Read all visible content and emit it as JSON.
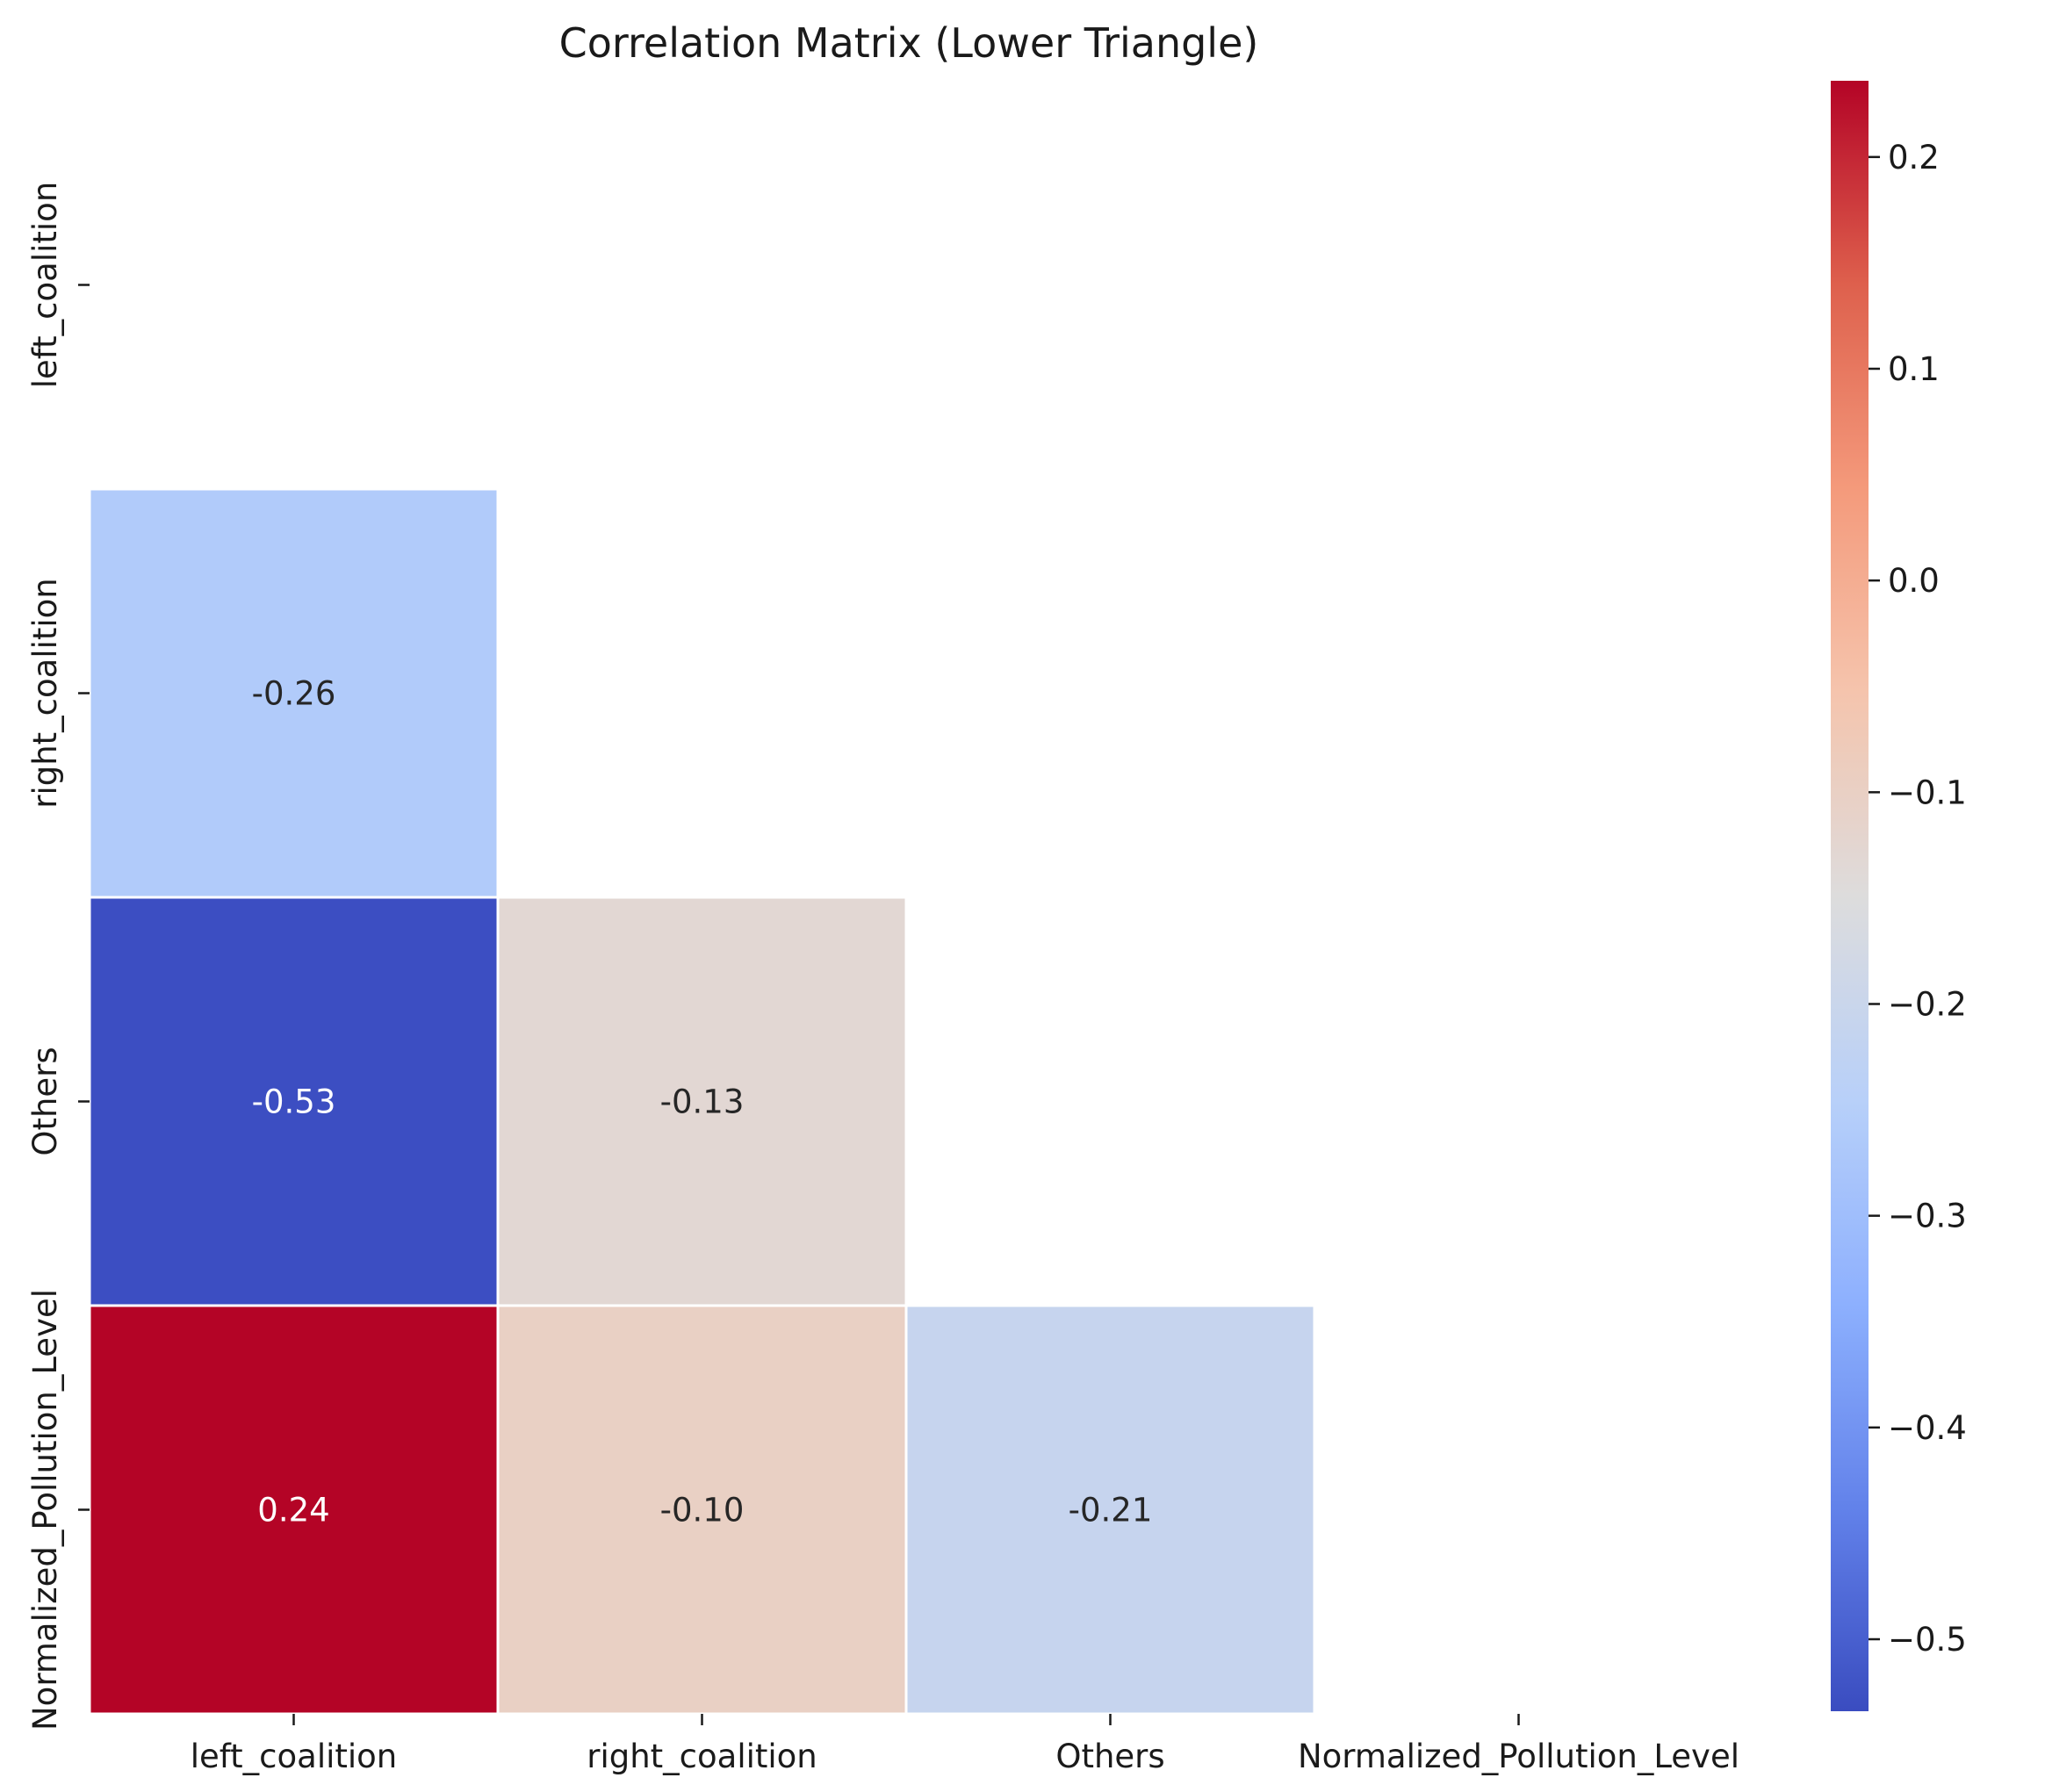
{
  "chart_data": {
    "type": "heatmap",
    "title": "Correlation Matrix (Lower Triangle)",
    "xlabel": "",
    "ylabel": "",
    "row_labels": [
      "left_coalition",
      "right_coalition",
      "Others",
      "Normalized_Pollution_Level"
    ],
    "col_labels": [
      "left_coalition",
      "right_coalition",
      "Others",
      "Normalized_Pollution_Level"
    ],
    "mask": "upper triangle including diagonal",
    "cells": [
      {
        "row": 1,
        "col": 0,
        "value": -0.26,
        "label": "-0.26"
      },
      {
        "row": 2,
        "col": 0,
        "value": -0.53,
        "label": "-0.53"
      },
      {
        "row": 2,
        "col": 1,
        "value": -0.13,
        "label": "-0.13"
      },
      {
        "row": 3,
        "col": 0,
        "value": 0.24,
        "label": "0.24"
      },
      {
        "row": 3,
        "col": 1,
        "value": -0.1,
        "label": "-0.10"
      },
      {
        "row": 3,
        "col": 2,
        "value": -0.21,
        "label": "-0.21"
      }
    ],
    "colormap": "coolwarm",
    "colorbar": {
      "vmin": -0.534,
      "vmax": 0.236,
      "ticks": [
        0.2,
        0.1,
        0.0,
        -0.1,
        -0.2,
        -0.3,
        -0.4,
        -0.5
      ],
      "tick_labels": [
        "0.2",
        "0.1",
        "0.0",
        "−0.1",
        "−0.2",
        "−0.3",
        "−0.4",
        "−0.5"
      ]
    },
    "grid": false,
    "legend": "colorbar at right"
  }
}
